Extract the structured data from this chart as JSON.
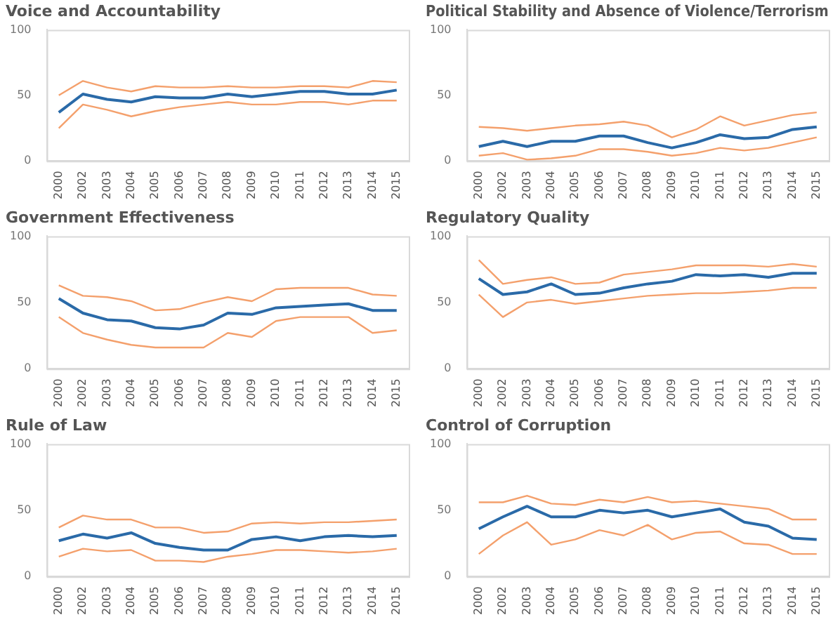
{
  "chart_data": [
    {
      "type": "line",
      "title": "Voice and Accountability",
      "categories": [
        "2000",
        "2002",
        "2003",
        "2004",
        "2005",
        "2006",
        "2007",
        "2008",
        "2009",
        "2010",
        "2011",
        "2012",
        "2013",
        "2014",
        "2015"
      ],
      "ylim": [
        0,
        100
      ],
      "yticks": [
        0,
        50,
        100
      ],
      "grid": false,
      "legend": false,
      "marker": "none",
      "series": [
        {
          "color": "#f4a06c",
          "values": [
            50,
            61,
            56,
            53,
            57,
            56,
            56,
            57,
            56,
            56,
            57,
            57,
            56,
            61,
            60
          ]
        },
        {
          "color": "#f4a06c",
          "values": [
            25,
            43,
            39,
            34,
            38,
            41,
            43,
            45,
            43,
            43,
            45,
            45,
            43,
            46,
            46
          ]
        },
        {
          "color": "#2a6aa8",
          "values": [
            37,
            51,
            47,
            45,
            49,
            48,
            48,
            51,
            49,
            51,
            53,
            53,
            51,
            51,
            54
          ]
        }
      ]
    },
    {
      "type": "line",
      "title": "Political Stability and Absence of Violence/Terrorism",
      "categories": [
        "2000",
        "2002",
        "2003",
        "2004",
        "2005",
        "2006",
        "2007",
        "2008",
        "2009",
        "2010",
        "2011",
        "2012",
        "2013",
        "2014",
        "2015"
      ],
      "ylim": [
        0,
        100
      ],
      "yticks": [
        0,
        50,
        100
      ],
      "grid": false,
      "legend": false,
      "marker": "none",
      "series": [
        {
          "color": "#f4a06c",
          "values": [
            26,
            25,
            23,
            25,
            27,
            28,
            30,
            27,
            18,
            24,
            34,
            27,
            31,
            35,
            37
          ]
        },
        {
          "color": "#f4a06c",
          "values": [
            4,
            6,
            1,
            2,
            4,
            9,
            9,
            7,
            4,
            6,
            10,
            8,
            10,
            14,
            18
          ]
        },
        {
          "color": "#2a6aa8",
          "values": [
            11,
            15,
            11,
            15,
            15,
            19,
            19,
            14,
            10,
            14,
            20,
            17,
            18,
            24,
            26
          ]
        }
      ]
    },
    {
      "type": "line",
      "title": "Government Effectiveness",
      "categories": [
        "2000",
        "2002",
        "2003",
        "2004",
        "2005",
        "2006",
        "2007",
        "2008",
        "2009",
        "2010",
        "2011",
        "2012",
        "2013",
        "2014",
        "2015"
      ],
      "ylim": [
        0,
        100
      ],
      "yticks": [
        0,
        50,
        100
      ],
      "grid": false,
      "legend": false,
      "marker": "none",
      "series": [
        {
          "color": "#f4a06c",
          "values": [
            63,
            55,
            54,
            51,
            44,
            45,
            50,
            54,
            51,
            60,
            61,
            61,
            61,
            56,
            55
          ]
        },
        {
          "color": "#f4a06c",
          "values": [
            39,
            27,
            22,
            18,
            16,
            16,
            16,
            27,
            24,
            36,
            39,
            39,
            39,
            27,
            29
          ]
        },
        {
          "color": "#2a6aa8",
          "values": [
            53,
            42,
            37,
            36,
            31,
            30,
            33,
            42,
            41,
            46,
            47,
            48,
            49,
            44,
            44
          ]
        }
      ]
    },
    {
      "type": "line",
      "title": "Regulatory Quality",
      "categories": [
        "2000",
        "2002",
        "2003",
        "2004",
        "2005",
        "2006",
        "2007",
        "2008",
        "2009",
        "2010",
        "2011",
        "2012",
        "2013",
        "2014",
        "2015"
      ],
      "ylim": [
        0,
        100
      ],
      "yticks": [
        0,
        50,
        100
      ],
      "grid": false,
      "legend": false,
      "marker": "none",
      "series": [
        {
          "color": "#f4a06c",
          "values": [
            82,
            64,
            67,
            69,
            64,
            65,
            71,
            73,
            75,
            78,
            78,
            78,
            77,
            79,
            77
          ]
        },
        {
          "color": "#f4a06c",
          "values": [
            56,
            39,
            50,
            52,
            49,
            51,
            53,
            55,
            56,
            57,
            57,
            58,
            59,
            61,
            61
          ]
        },
        {
          "color": "#2a6aa8",
          "values": [
            68,
            56,
            58,
            64,
            56,
            57,
            61,
            64,
            66,
            71,
            70,
            71,
            69,
            72,
            72
          ]
        }
      ]
    },
    {
      "type": "line",
      "title": "Rule of Law",
      "categories": [
        "2000",
        "2002",
        "2003",
        "2004",
        "2005",
        "2006",
        "2007",
        "2008",
        "2009",
        "2010",
        "2011",
        "2012",
        "2013",
        "2014",
        "2015"
      ],
      "ylim": [
        0,
        100
      ],
      "yticks": [
        0,
        50,
        100
      ],
      "grid": false,
      "legend": false,
      "marker": "none",
      "series": [
        {
          "color": "#f4a06c",
          "values": [
            37,
            46,
            43,
            43,
            37,
            37,
            33,
            34,
            40,
            41,
            40,
            41,
            41,
            42,
            43
          ]
        },
        {
          "color": "#f4a06c",
          "values": [
            15,
            21,
            19,
            20,
            12,
            12,
            11,
            15,
            17,
            20,
            20,
            19,
            18,
            19,
            21
          ]
        },
        {
          "color": "#2a6aa8",
          "values": [
            27,
            32,
            29,
            33,
            25,
            22,
            20,
            20,
            28,
            30,
            27,
            30,
            31,
            30,
            31
          ]
        }
      ]
    },
    {
      "type": "line",
      "title": "Control of Corruption",
      "categories": [
        "2000",
        "2002",
        "2003",
        "2004",
        "2005",
        "2006",
        "2007",
        "2008",
        "2009",
        "2010",
        "2011",
        "2012",
        "2013",
        "2014",
        "2015"
      ],
      "ylim": [
        0,
        100
      ],
      "yticks": [
        0,
        50,
        100
      ],
      "grid": false,
      "legend": false,
      "marker": "none",
      "series": [
        {
          "color": "#f4a06c",
          "values": [
            56,
            56,
            61,
            55,
            54,
            58,
            56,
            60,
            56,
            57,
            55,
            53,
            51,
            43,
            43
          ]
        },
        {
          "color": "#f4a06c",
          "values": [
            17,
            31,
            41,
            24,
            28,
            35,
            31,
            39,
            28,
            33,
            34,
            25,
            24,
            17,
            17
          ]
        },
        {
          "color": "#2a6aa8",
          "values": [
            36,
            45,
            53,
            45,
            45,
            50,
            48,
            50,
            45,
            48,
            51,
            41,
            38,
            29,
            28
          ]
        }
      ]
    }
  ]
}
